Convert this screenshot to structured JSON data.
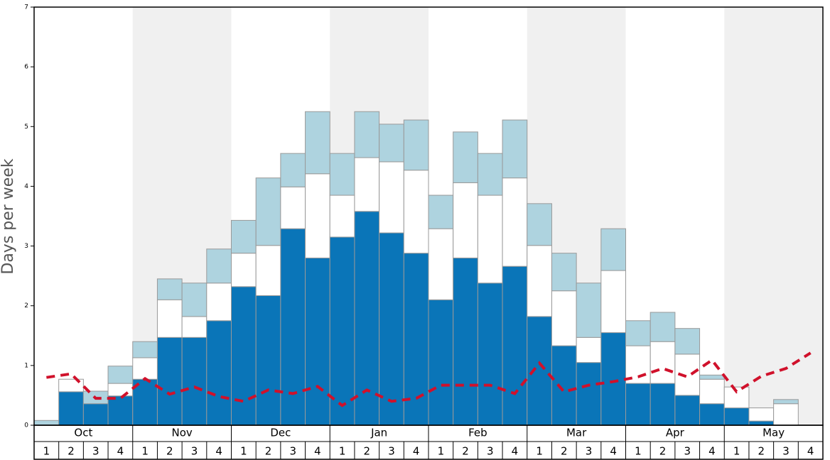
{
  "chart_data": {
    "type": "stacked-bar",
    "y_label": "Days per week",
    "months": [
      "Oct",
      "Nov",
      "Dec",
      "Jan",
      "Feb",
      "Mar",
      "Apr",
      "May"
    ],
    "categories": [
      "1",
      "2",
      "3",
      "4",
      "1",
      "2",
      "3",
      "4",
      "1",
      "2",
      "3",
      "4",
      "1",
      "2",
      "3",
      "4",
      "1",
      "2",
      "3",
      "4",
      "1",
      "2",
      "3",
      "4",
      "1",
      "2",
      "3",
      "4",
      "1",
      "2",
      "3",
      "4"
    ],
    "series": [
      {
        "color": "#0a75b8",
        "values": [
          0,
          0.56,
          0.36,
          0.49,
          0.77,
          1.47,
          1.47,
          1.75,
          2.32,
          2.17,
          3.29,
          2.8,
          3.15,
          3.58,
          3.22,
          2.88,
          2.1,
          2.8,
          2.38,
          2.66,
          1.82,
          1.33,
          1.05,
          1.55,
          0.7,
          0.7,
          0.5,
          0.36,
          0.29,
          0.07,
          0,
          0
        ]
      },
      {
        "color": "#ffffff",
        "values": [
          0,
          0.21,
          0,
          0.21,
          0.36,
          0.63,
          0.35,
          0.63,
          0.56,
          0.84,
          0.7,
          1.41,
          0.7,
          0.9,
          1.19,
          1.39,
          1.19,
          1.26,
          1.47,
          1.48,
          1.19,
          0.92,
          0.42,
          1.04,
          0.63,
          0.7,
          0.69,
          0.41,
          0.35,
          0.22,
          0.36,
          0
        ]
      },
      {
        "color": "#aed3df",
        "values": [
          0.08,
          0,
          0.21,
          0.29,
          0.27,
          0.35,
          0.56,
          0.57,
          0.55,
          1.13,
          0.56,
          1.04,
          0.7,
          0.77,
          0.63,
          0.84,
          0.56,
          0.85,
          0.7,
          0.97,
          0.7,
          0.63,
          0.91,
          0.7,
          0.42,
          0.49,
          0.43,
          0.07,
          0,
          0,
          0.07,
          0
        ]
      }
    ],
    "line": {
      "color": "#d0112b",
      "values": [
        0.8,
        0.86,
        0.45,
        0.45,
        0.78,
        0.52,
        0.64,
        0.48,
        0.4,
        0.59,
        0.53,
        0.65,
        0.33,
        0.59,
        0.4,
        0.45,
        0.67,
        0.67,
        0.67,
        0.53,
        1.04,
        0.56,
        0.67,
        0.73,
        0.81,
        0.95,
        0.81,
        1.09,
        0.56,
        0.82,
        0.95,
        1.21
      ]
    },
    "ylim": [
      0,
      7
    ],
    "yticks": [
      0,
      1,
      2,
      3,
      4,
      5,
      6,
      7
    ],
    "shade_color": "#f0f0f0"
  }
}
